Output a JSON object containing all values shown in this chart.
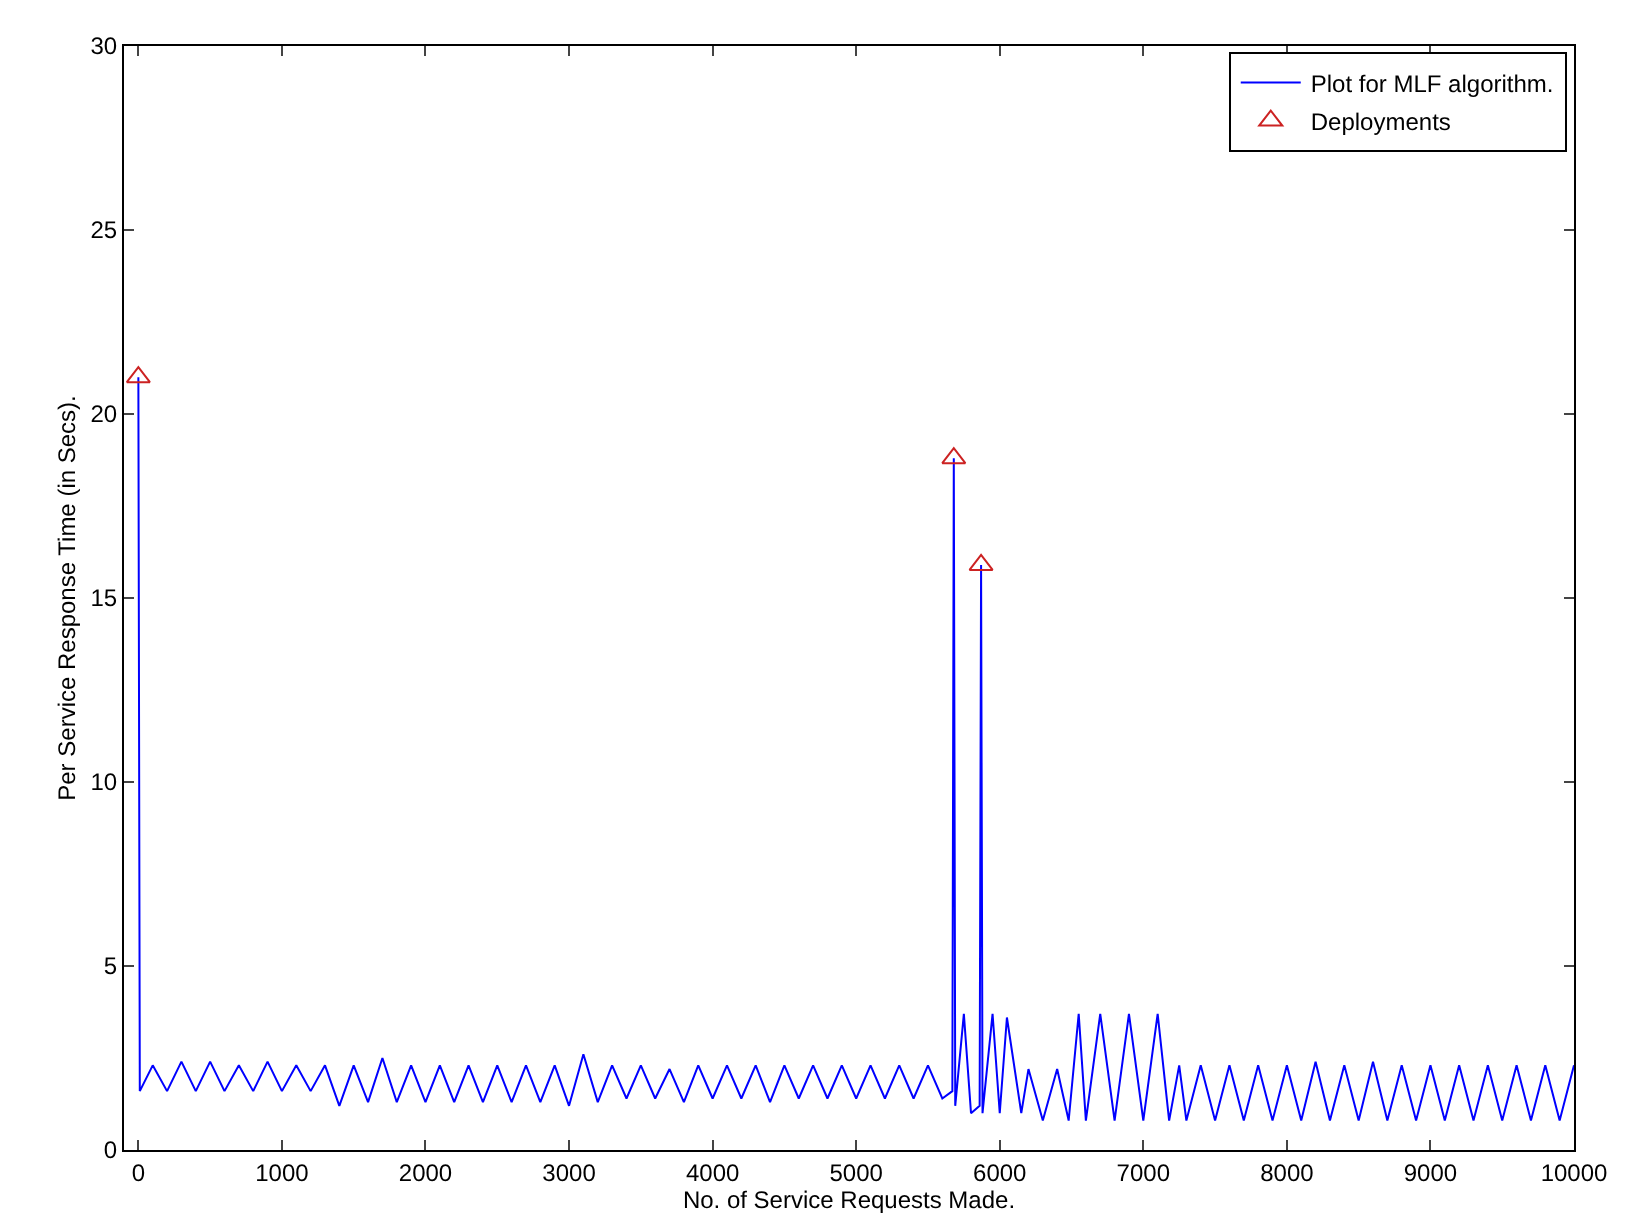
{
  "chart_data": {
    "type": "line",
    "xlabel": "No. of Service Requests Made.",
    "ylabel": "Per Service Response Time (in Secs).",
    "xlim": [
      -100,
      10000
    ],
    "xticks": [
      0,
      1000,
      2000,
      3000,
      4000,
      5000,
      6000,
      7000,
      8000,
      9000,
      10000
    ],
    "ylim": [
      0,
      30
    ],
    "yticks": [
      0,
      5,
      10,
      15,
      20,
      25,
      30
    ],
    "grid": false,
    "legend": "top right",
    "series": [
      {
        "name": "Plot for MLF algorithm.",
        "color": "#0000ff",
        "marker": "none",
        "line_style": "solid",
        "x": [
          0,
          10,
          100,
          200,
          300,
          400,
          500,
          600,
          700,
          800,
          900,
          1000,
          1100,
          1200,
          1300,
          1400,
          1500,
          1600,
          1700,
          1800,
          1900,
          2000,
          2100,
          2200,
          2300,
          2400,
          2500,
          2600,
          2700,
          2800,
          2900,
          3000,
          3100,
          3200,
          3300,
          3400,
          3500,
          3600,
          3700,
          3800,
          3900,
          4000,
          4100,
          4200,
          4300,
          4400,
          4500,
          4600,
          4700,
          4800,
          4900,
          5000,
          5100,
          5200,
          5300,
          5400,
          5500,
          5600,
          5670,
          5680,
          5690,
          5750,
          5800,
          5860,
          5870,
          5880,
          5950,
          6000,
          6050,
          6150,
          6200,
          6300,
          6400,
          6480,
          6550,
          6600,
          6700,
          6800,
          6900,
          7000,
          7100,
          7180,
          7250,
          7300,
          7400,
          7500,
          7600,
          7700,
          7800,
          7900,
          8000,
          8100,
          8200,
          8300,
          8400,
          8500,
          8600,
          8700,
          8800,
          8900,
          9000,
          9100,
          9200,
          9300,
          9400,
          9500,
          9600,
          9700,
          9800,
          9900,
          10000
        ],
        "values": [
          21,
          1.6,
          2.3,
          1.6,
          2.4,
          1.6,
          2.4,
          1.6,
          2.3,
          1.6,
          2.4,
          1.6,
          2.3,
          1.6,
          2.3,
          1.2,
          2.3,
          1.3,
          2.5,
          1.3,
          2.3,
          1.3,
          2.3,
          1.3,
          2.3,
          1.3,
          2.3,
          1.3,
          2.3,
          1.3,
          2.3,
          1.2,
          2.6,
          1.3,
          2.3,
          1.4,
          2.3,
          1.4,
          2.2,
          1.3,
          2.3,
          1.4,
          2.3,
          1.4,
          2.3,
          1.3,
          2.3,
          1.4,
          2.3,
          1.4,
          2.3,
          1.4,
          2.3,
          1.4,
          2.3,
          1.4,
          2.3,
          1.4,
          1.6,
          18.8,
          1.2,
          3.7,
          1.0,
          1.2,
          15.9,
          1.0,
          3.7,
          1.0,
          3.6,
          1.0,
          2.2,
          0.8,
          2.2,
          0.8,
          3.7,
          0.8,
          3.7,
          0.8,
          3.7,
          0.8,
          3.7,
          0.8,
          2.3,
          0.8,
          2.3,
          0.8,
          2.3,
          0.8,
          2.3,
          0.8,
          2.3,
          0.8,
          2.4,
          0.8,
          2.3,
          0.8,
          2.4,
          0.8,
          2.3,
          0.8,
          2.3,
          0.8,
          2.3,
          0.8,
          2.3,
          0.8,
          2.3,
          0.8,
          2.3,
          0.8,
          2.3
        ]
      },
      {
        "name": "Deployments",
        "type": "scatter",
        "color": "#cc2222",
        "marker": "triangle",
        "x": [
          0,
          5680,
          5870
        ],
        "values": [
          21,
          18.8,
          15.9
        ]
      }
    ]
  }
}
